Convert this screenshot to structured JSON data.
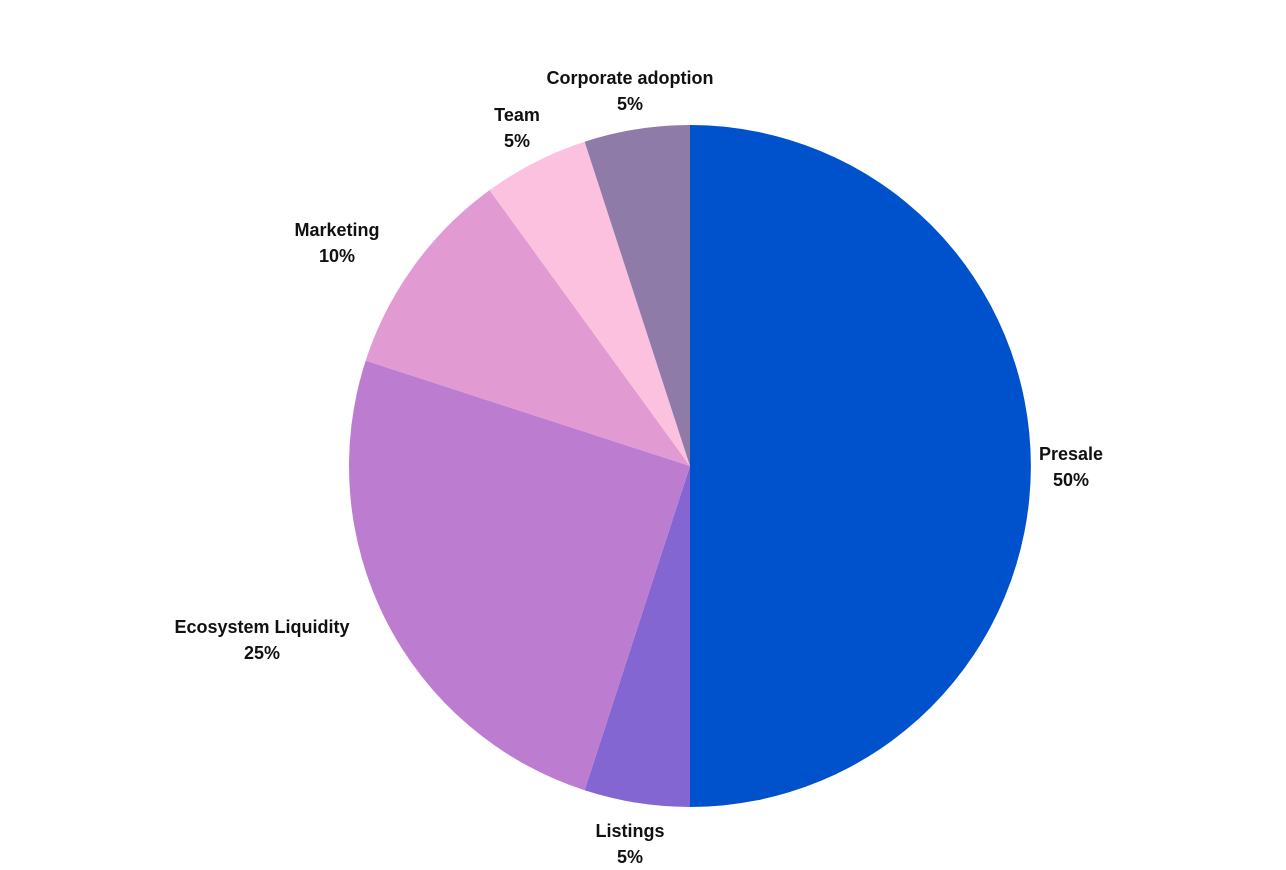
{
  "chart_data": {
    "type": "pie",
    "title": "",
    "start": "12 o'clock",
    "direction": "clockwise",
    "legend": "none",
    "slices": [
      {
        "label": "Presale",
        "value": 50,
        "display": "50%",
        "color": "#0052CC"
      },
      {
        "label": "Listings",
        "value": 5,
        "display": "5%",
        "color": "#8466D3"
      },
      {
        "label": "Ecosystem Liquidity",
        "value": 25,
        "display": "25%",
        "color": "#BC7DD1"
      },
      {
        "label": "Marketing",
        "value": 10,
        "display": "10%",
        "color": "#E29AD3"
      },
      {
        "label": "Team",
        "value": 5,
        "display": "5%",
        "color": "#FDC1E0"
      },
      {
        "label": "Corporate adoption",
        "value": 5,
        "display": "5%",
        "color": "#8E7BA8"
      }
    ]
  }
}
